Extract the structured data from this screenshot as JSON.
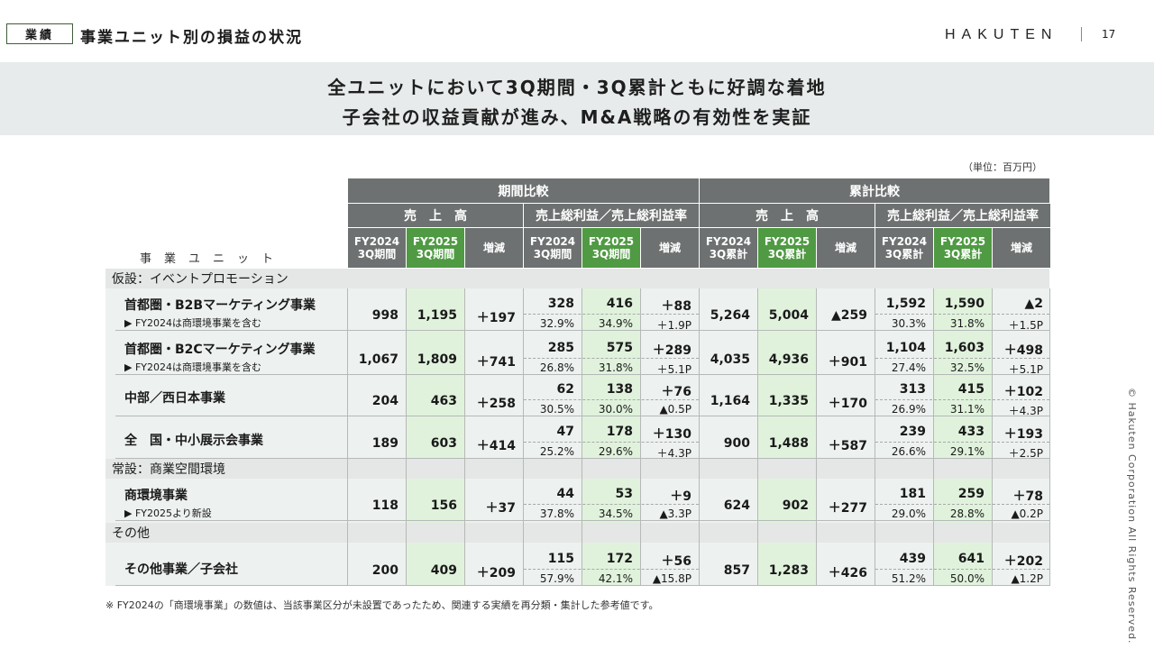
{
  "header": {
    "tag": "業績",
    "title": "事業ユニット別の損益の状況",
    "logo": "HAKUTEN",
    "page_number": "17"
  },
  "banner": {
    "line1": "全ユニットにおいて3Q期間・3Q累計ともに好調な着地",
    "line2": "子会社の収益貢献が進み、M&A戦略の有効性を実証"
  },
  "unit_note": "（単位：百万円）",
  "table": {
    "groups": [
      "期間比較",
      "累計比較"
    ],
    "subgroups": [
      "売　上　高",
      "売上総利益／売上総利益率",
      "売　上　高",
      "売上総利益／売上総利益率"
    ],
    "col_headers": [
      "FY2024\n3Q期間",
      "FY2025\n3Q期間",
      "増減",
      "FY2024\n3Q期間",
      "FY2025\n3Q期間",
      "増減",
      "FY2024\n3Q累計",
      "FY2025\n3Q累計",
      "増減",
      "FY2024\n3Q累計",
      "FY2025\n3Q累計",
      "増減"
    ],
    "unit_label": "事業ユニット",
    "sections": [
      "仮設：イベントプロモーション",
      "常設：商業空間環境",
      "その他"
    ],
    "rows": [
      {
        "name": "首都圏・B2Bマーケティング事業",
        "sub": "▶ FY2024は商環境事業を含む",
        "p_sales": [
          "998",
          "1,195",
          "＋197"
        ],
        "p_gp": [
          "328",
          "416",
          "＋88"
        ],
        "p_rate": [
          "32.9%",
          "34.9%",
          "＋1.9P"
        ],
        "c_sales": [
          "5,264",
          "5,004",
          "▲259"
        ],
        "c_gp": [
          "1,592",
          "1,590",
          "▲2"
        ],
        "c_rate": [
          "30.3%",
          "31.8%",
          "＋1.5P"
        ]
      },
      {
        "name": "首都圏・B2Cマーケティング事業",
        "sub": "▶ FY2024は商環境事業を含む",
        "p_sales": [
          "1,067",
          "1,809",
          "＋741"
        ],
        "p_gp": [
          "285",
          "575",
          "＋289"
        ],
        "p_rate": [
          "26.8%",
          "31.8%",
          "＋5.1P"
        ],
        "c_sales": [
          "4,035",
          "4,936",
          "＋901"
        ],
        "c_gp": [
          "1,104",
          "1,603",
          "＋498"
        ],
        "c_rate": [
          "27.4%",
          "32.5%",
          "＋5.1P"
        ]
      },
      {
        "name": "中部／西日本事業",
        "sub": "",
        "p_sales": [
          "204",
          "463",
          "＋258"
        ],
        "p_gp": [
          "62",
          "138",
          "＋76"
        ],
        "p_rate": [
          "30.5%",
          "30.0%",
          "▲0.5P"
        ],
        "c_sales": [
          "1,164",
          "1,335",
          "＋170"
        ],
        "c_gp": [
          "313",
          "415",
          "＋102"
        ],
        "c_rate": [
          "26.9%",
          "31.1%",
          "＋4.3P"
        ]
      },
      {
        "name": "全　国・中小展示会事業",
        "sub": "",
        "p_sales": [
          "189",
          "603",
          "＋414"
        ],
        "p_gp": [
          "47",
          "178",
          "＋130"
        ],
        "p_rate": [
          "25.2%",
          "29.6%",
          "＋4.3P"
        ],
        "c_sales": [
          "900",
          "1,488",
          "＋587"
        ],
        "c_gp": [
          "239",
          "433",
          "＋193"
        ],
        "c_rate": [
          "26.6%",
          "29.1%",
          "＋2.5P"
        ]
      },
      {
        "name": "商環境事業",
        "sub": "▶ FY2025より新設",
        "p_sales": [
          "118",
          "156",
          "＋37"
        ],
        "p_gp": [
          "44",
          "53",
          "＋9"
        ],
        "p_rate": [
          "37.8%",
          "34.5%",
          "▲3.3P"
        ],
        "c_sales": [
          "624",
          "902",
          "＋277"
        ],
        "c_gp": [
          "181",
          "259",
          "＋78"
        ],
        "c_rate": [
          "29.0%",
          "28.8%",
          "▲0.2P"
        ]
      },
      {
        "name": "その他事業／子会社",
        "sub": "",
        "p_sales": [
          "200",
          "409",
          "＋209"
        ],
        "p_gp": [
          "115",
          "172",
          "＋56"
        ],
        "p_rate": [
          "57.9%",
          "42.1%",
          "▲15.8P"
        ],
        "c_sales": [
          "857",
          "1,283",
          "＋426"
        ],
        "c_gp": [
          "439",
          "641",
          "＋202"
        ],
        "c_rate": [
          "51.2%",
          "50.0%",
          "▲1.2P"
        ]
      }
    ]
  },
  "footnote": "※ FY2024の「商環境事業」の数値は、当該事業区分が未設置であったため、関連する実績を再分類・集計した参考値です。",
  "copyright": "© Hakuten Corporation All Rights Reserved."
}
